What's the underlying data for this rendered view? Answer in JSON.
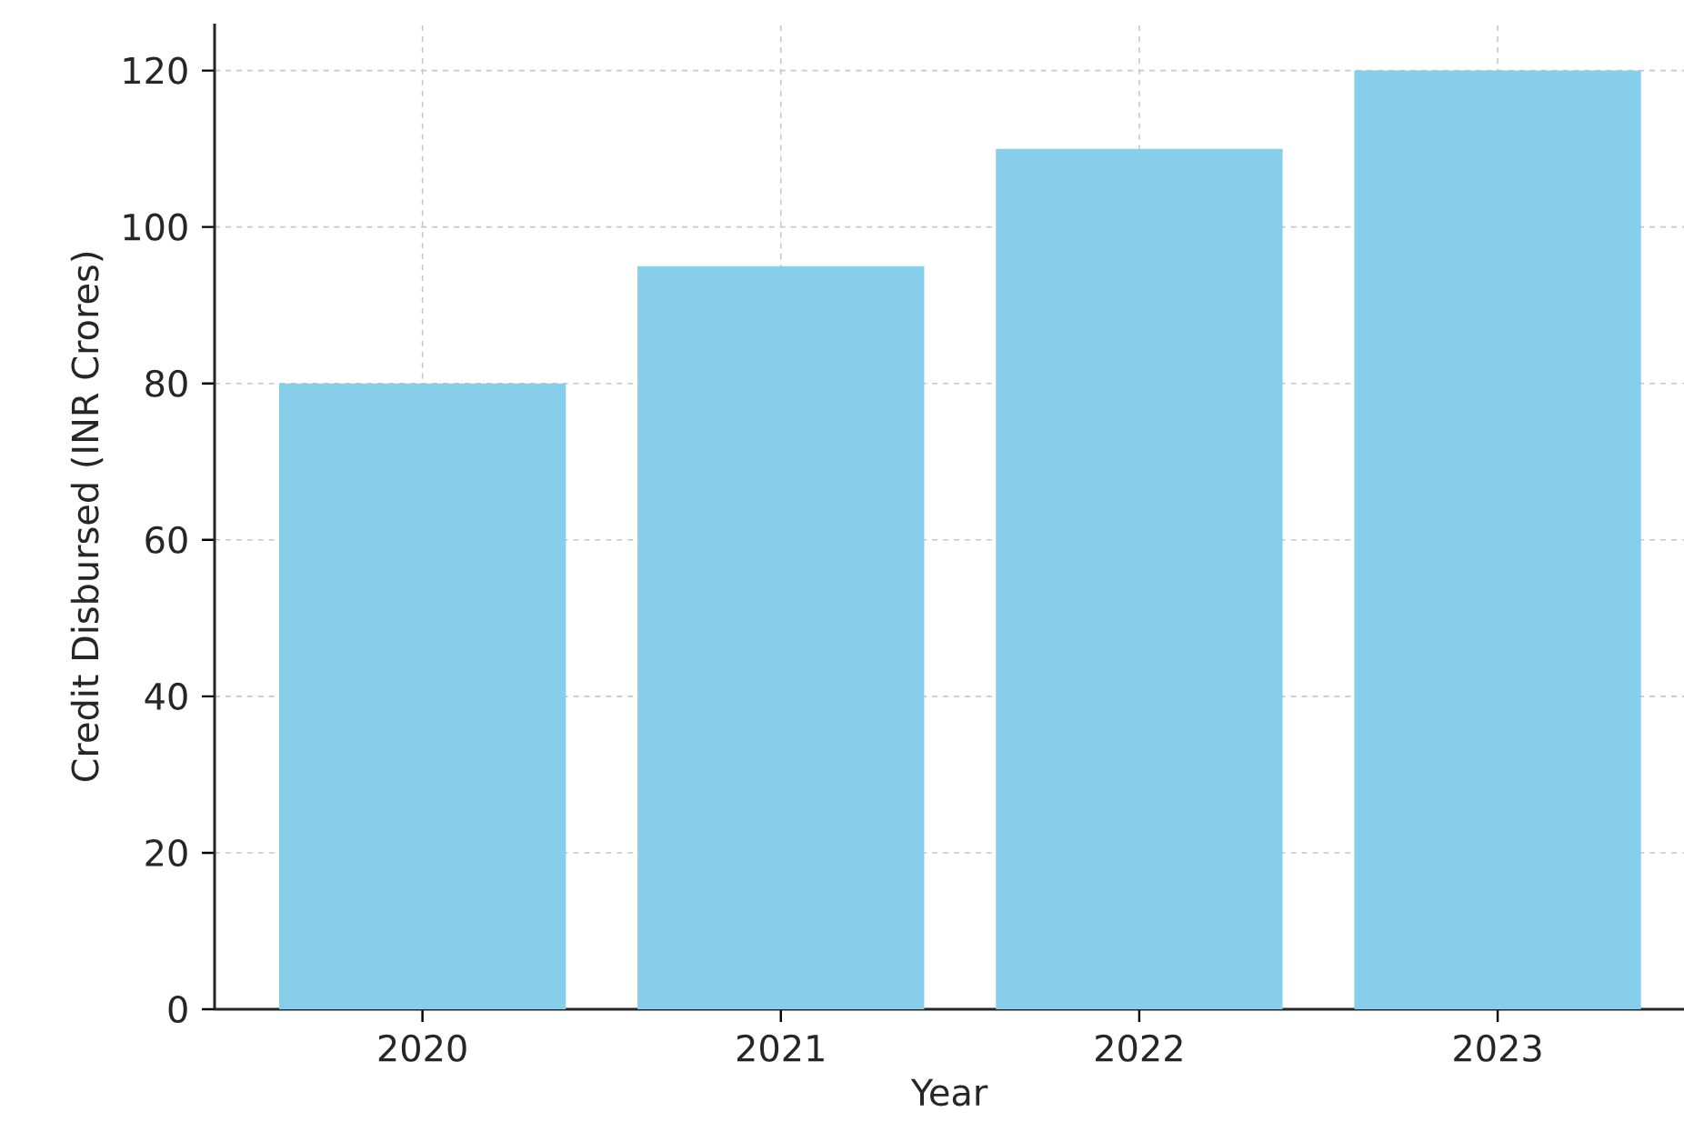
{
  "chart_data": {
    "type": "bar",
    "xlabel": "Year",
    "ylabel": "Credit Disbursed (INR Crores)",
    "categories": [
      "2020",
      "2021",
      "2022",
      "2023"
    ],
    "values": [
      80,
      95,
      110,
      120
    ],
    "color": "#87ceeb",
    "ylim": [
      0,
      126
    ],
    "yticks": [
      0,
      20,
      40,
      60,
      80,
      100,
      120
    ],
    "grid": true
  }
}
